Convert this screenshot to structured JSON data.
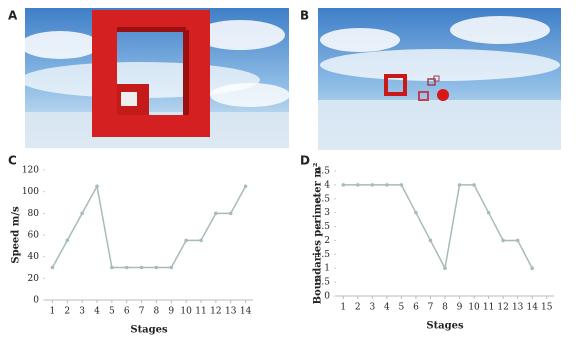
{
  "panel_labels": [
    "A",
    "B",
    "C",
    "D"
  ],
  "chart_data": [
    {
      "type": "line",
      "ylabel": "Speed m/s",
      "xlabel": "Stages",
      "x": [
        1,
        2,
        3,
        4,
        5,
        6,
        7,
        8,
        9,
        10,
        11,
        12,
        13,
        14
      ],
      "series": [
        {
          "color": "#a7bcb4",
          "values": [
            30,
            55,
            80,
            105,
            30,
            30,
            30,
            30,
            30,
            55,
            55,
            80,
            80,
            105
          ]
        }
      ],
      "xlim": [
        0.5,
        14.5
      ],
      "xticks": [
        1,
        2,
        3,
        4,
        5,
        6,
        7,
        8,
        9,
        10,
        11,
        12,
        13,
        14
      ],
      "ylim": [
        0,
        120
      ],
      "yticks": [
        0,
        20,
        40,
        60,
        80,
        100,
        120
      ],
      "grid": false
    },
    {
      "type": "line",
      "ylabel": "Boundaries perimeter m²",
      "xlabel": "Stages",
      "x": [
        1,
        2,
        3,
        4,
        5,
        6,
        7,
        8,
        9,
        10,
        11,
        12,
        13,
        14
      ],
      "series": [
        {
          "color": "#a7bcb4",
          "values": [
            4,
            4,
            4,
            4,
            4,
            3,
            2,
            1,
            4,
            4,
            3,
            2,
            2,
            1
          ]
        }
      ],
      "xlim": [
        0.5,
        15.5
      ],
      "xticks": [
        1,
        2,
        3,
        4,
        5,
        6,
        7,
        8,
        9,
        10,
        11,
        12,
        13,
        14,
        15
      ],
      "ylim": [
        0,
        4.5
      ],
      "yticks": [
        0,
        0.5,
        1,
        1.5,
        2,
        2.5,
        3,
        3.5,
        4,
        4.5
      ],
      "grid": false
    }
  ]
}
